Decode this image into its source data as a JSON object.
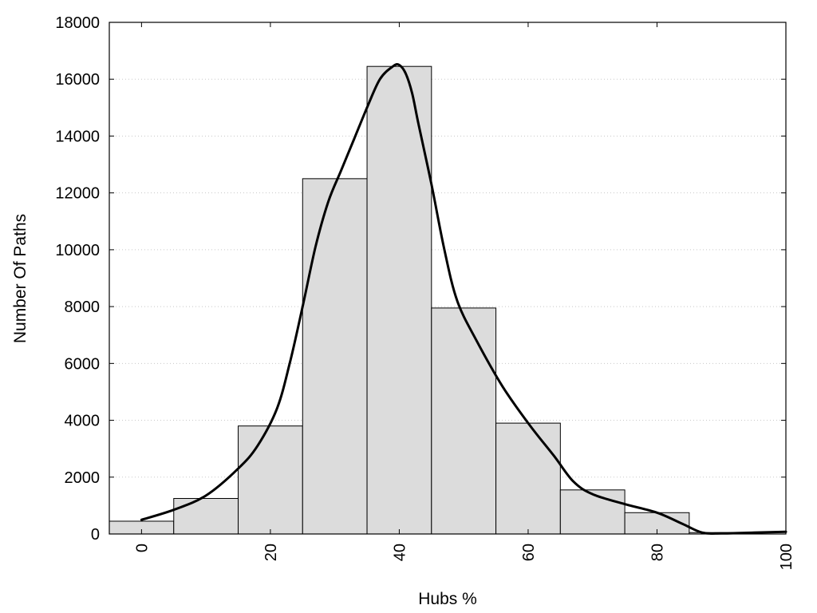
{
  "chart_data": {
    "type": "bar",
    "title": "",
    "xlabel": "Hubs %",
    "ylabel": "Number Of Paths",
    "xlim": [
      -5,
      100
    ],
    "ylim": [
      0,
      18000
    ],
    "x_ticks": [
      0,
      20,
      40,
      60,
      80,
      100
    ],
    "y_ticks": [
      0,
      2000,
      4000,
      6000,
      8000,
      10000,
      12000,
      14000,
      16000,
      18000
    ],
    "grid": "horizontal dotted",
    "bar_color": "#dcdcdc",
    "bar_width": 10,
    "bars": [
      {
        "x": 0,
        "value": 450
      },
      {
        "x": 10,
        "value": 1250
      },
      {
        "x": 20,
        "value": 3800
      },
      {
        "x": 30,
        "value": 12500
      },
      {
        "x": 40,
        "value": 16450
      },
      {
        "x": 50,
        "value": 7950
      },
      {
        "x": 60,
        "value": 3900
      },
      {
        "x": 70,
        "value": 1550
      },
      {
        "x": 80,
        "value": 750
      },
      {
        "x": 90,
        "value": 50
      }
    ],
    "density_curve": {
      "color": "#000000",
      "points": [
        {
          "x": 0,
          "y": 500
        },
        {
          "x": 5,
          "y": 850
        },
        {
          "x": 10,
          "y": 1350
        },
        {
          "x": 15,
          "y": 2300
        },
        {
          "x": 18,
          "y": 3100
        },
        {
          "x": 21,
          "y": 4400
        },
        {
          "x": 23,
          "y": 6000
        },
        {
          "x": 25,
          "y": 8000
        },
        {
          "x": 27,
          "y": 10100
        },
        {
          "x": 29,
          "y": 11700
        },
        {
          "x": 31,
          "y": 12800
        },
        {
          "x": 33,
          "y": 13900
        },
        {
          "x": 35,
          "y": 15000
        },
        {
          "x": 37,
          "y": 16000
        },
        {
          "x": 39,
          "y": 16450
        },
        {
          "x": 40,
          "y": 16500
        },
        {
          "x": 41,
          "y": 16200
        },
        {
          "x": 42,
          "y": 15500
        },
        {
          "x": 43,
          "y": 14400
        },
        {
          "x": 45,
          "y": 12300
        },
        {
          "x": 47,
          "y": 10000
        },
        {
          "x": 49,
          "y": 8200
        },
        {
          "x": 52,
          "y": 6800
        },
        {
          "x": 56,
          "y": 5200
        },
        {
          "x": 60,
          "y": 3900
        },
        {
          "x": 64,
          "y": 2750
        },
        {
          "x": 67,
          "y": 1850
        },
        {
          "x": 70,
          "y": 1400
        },
        {
          "x": 75,
          "y": 1050
        },
        {
          "x": 80,
          "y": 750
        },
        {
          "x": 84,
          "y": 350
        },
        {
          "x": 87,
          "y": 50
        },
        {
          "x": 90,
          "y": 20
        },
        {
          "x": 95,
          "y": 50
        },
        {
          "x": 100,
          "y": 80
        }
      ]
    }
  }
}
